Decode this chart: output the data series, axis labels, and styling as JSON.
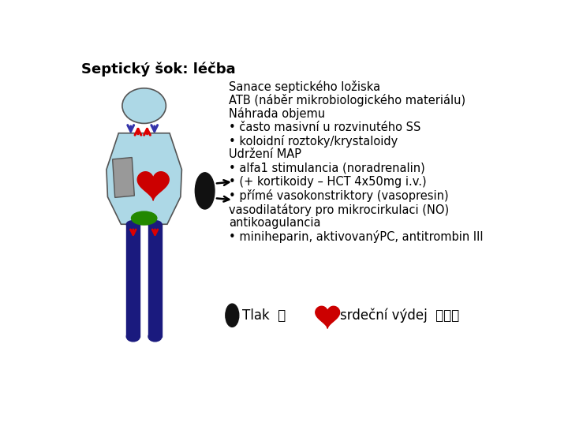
{
  "title": "Septický šok: léčba",
  "title_fontsize": 13,
  "bg_color": "#ffffff",
  "body_color": "#add8e6",
  "head_color": "#add8e6",
  "leg_color": "#1a1a7e",
  "text_lines": [
    "Sanace septického ložiska",
    "ATB (náběr mikrobiologického materiálu)",
    "Náhrada objemu",
    "• často masivní u rozvinutého SS",
    "• koloidní roztoky/krystaloidy",
    "Udržení MAP",
    "• alfa1 stimulancia (noradrenalin)",
    "• (+ kortikoidy – HCT 4x50mg i.v.)",
    "• přímé vasokonstriktory (vasopresin)",
    "vasodilatátory pro mikrocirkulaci (NO)",
    "antikoagulancia",
    "• miniheparin, aktivovanýPC, antitrombin III"
  ],
  "legend_text1": "Tlak ⨉",
  "legend_text2": "srdeční výdej ⨈⨈⨈",
  "arrow_blue": "#3333aa",
  "arrow_red": "#dd0000",
  "heart_color": "#cc0000",
  "green_ellipse_color": "#228800",
  "gray_rect_color": "#999999",
  "black_color": "#111111"
}
